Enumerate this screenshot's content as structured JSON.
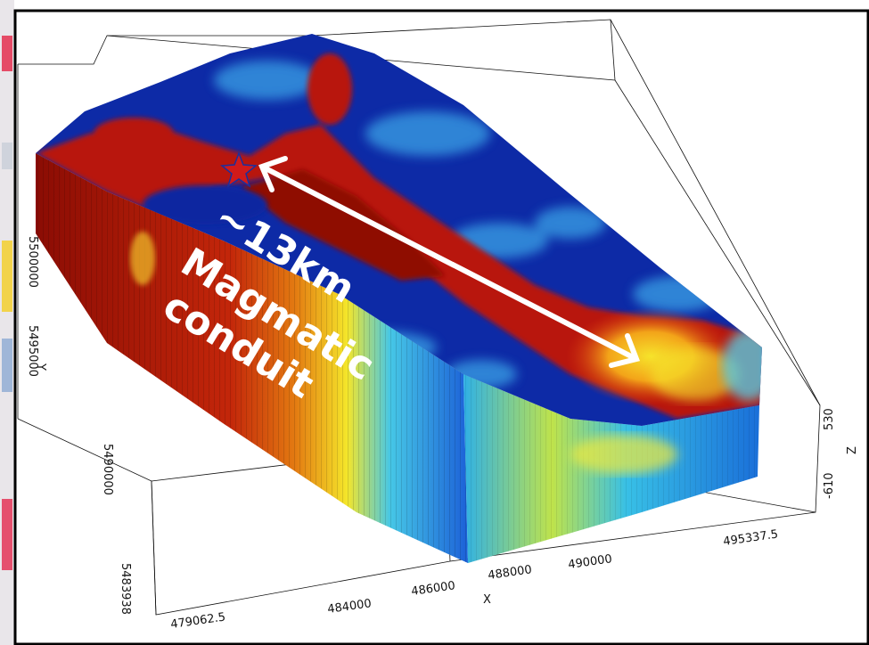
{
  "annotation": {
    "distance": "~13km",
    "line1": "Magmatic",
    "line2": "conduit"
  },
  "axes": {
    "x": {
      "label": "X",
      "ticks": [
        "479062.5",
        "484000",
        "486000",
        "488000",
        "490000",
        "495337.5"
      ]
    },
    "y": {
      "label": "Y",
      "ticks": [
        "5483938",
        "5490000",
        "5495000",
        "5500000"
      ]
    },
    "z": {
      "label": "Z",
      "ticks": [
        "530",
        "-610"
      ]
    }
  },
  "colors": {
    "low": "#0a2fb0",
    "mid": "#3ec3f0",
    "mid_high": "#f5e62a",
    "high": "#c01508",
    "marker": "#d11a1a",
    "arrow": "#ffffff"
  },
  "icons": {
    "source_marker": "star-icon",
    "arrow": "double-headed-arrow-icon"
  }
}
